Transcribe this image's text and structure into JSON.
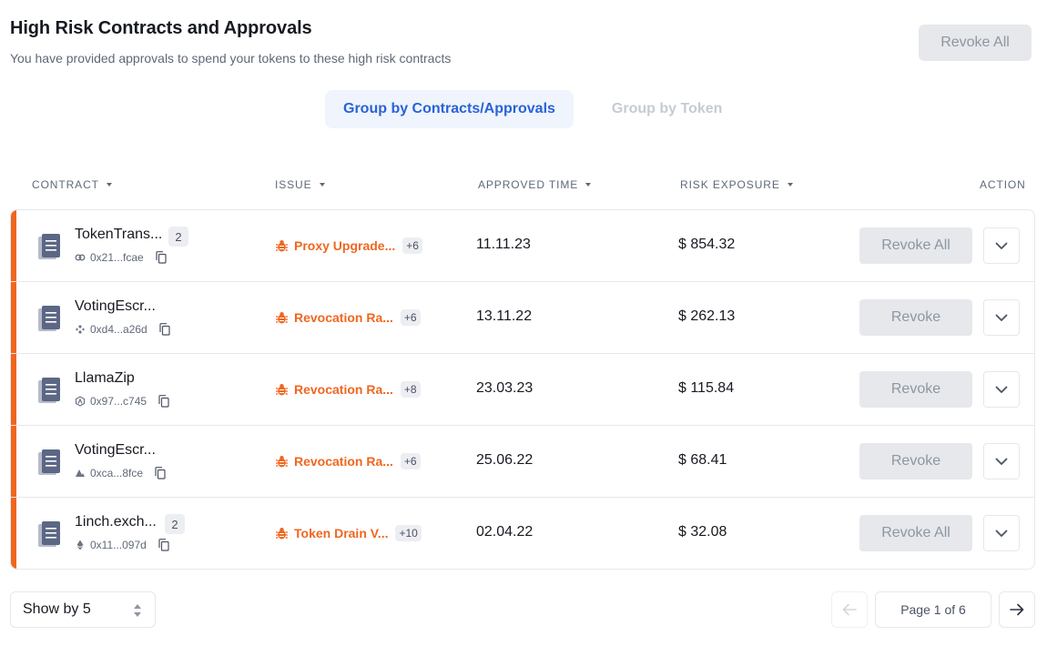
{
  "header": {
    "title": "High Risk Contracts and Approvals",
    "subtitle": "You have provided approvals to spend your tokens to these high risk contracts",
    "revoke_all_label": "Revoke All"
  },
  "group_tabs": {
    "contracts": "Group by Contracts/Approvals",
    "token": "Group by Token"
  },
  "columns": {
    "contract": "CONTRACT",
    "issue": "ISSUE",
    "approved_time": "APPROVED TIME",
    "risk_exposure": "RISK EXPOSURE",
    "action": "ACTION"
  },
  "rows": [
    {
      "name": "TokenTrans...",
      "count": "2",
      "address": "0x21...fcae",
      "chain_icon": "link-chain-icon",
      "issue": "Proxy Upgrade...",
      "issue_more": "+6",
      "time": "11.11.23",
      "exposure": "$ 854.32",
      "action": "Revoke All"
    },
    {
      "name": "VotingEscr...",
      "count": "",
      "address": "0xd4...a26d",
      "chain_icon": "bnb-chain-icon",
      "issue": "Revocation Ra...",
      "issue_more": "+6",
      "time": "13.11.22",
      "exposure": "$ 262.13",
      "action": "Revoke"
    },
    {
      "name": "LlamaZip",
      "count": "",
      "address": "0x97...c745",
      "chain_icon": "arbitrum-chain-icon",
      "issue": "Revocation Ra...",
      "issue_more": "+8",
      "time": "23.03.23",
      "exposure": "$ 115.84",
      "action": "Revoke"
    },
    {
      "name": "VotingEscr...",
      "count": "",
      "address": "0xca...8fce",
      "chain_icon": "avalanche-chain-icon",
      "issue": "Revocation Ra...",
      "issue_more": "+6",
      "time": "25.06.22",
      "exposure": "$ 68.41",
      "action": "Revoke"
    },
    {
      "name": "1inch.exch...",
      "count": "2",
      "address": "0x11...097d",
      "chain_icon": "ethereum-chain-icon",
      "issue": "Token Drain V...",
      "issue_more": "+10",
      "time": "02.04.22",
      "exposure": "$ 32.08",
      "action": "Revoke All"
    }
  ],
  "footer": {
    "show_by": "Show by 5",
    "page_label": "Page 1 of 6"
  },
  "colors": {
    "accent": "#f0661f",
    "primary": "#2a62d8",
    "disabled_bg": "#e6e8eb"
  }
}
